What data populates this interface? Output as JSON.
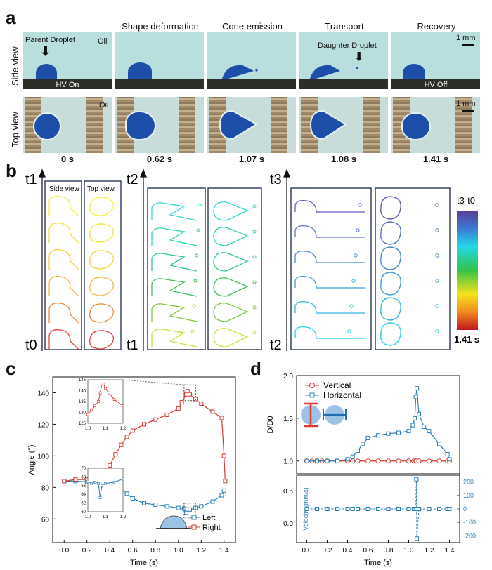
{
  "panel_labels": {
    "a": "a",
    "b": "b",
    "c": "c",
    "d": "d"
  },
  "panel_a": {
    "columns": [
      "",
      "Shape deformation",
      "Cone emission",
      "Transport",
      "Recovery"
    ],
    "row_labels": {
      "side": "Side view",
      "top": "Top view"
    },
    "parent_droplet": "Parent Droplet",
    "daughter_droplet": "Daughter Droplet",
    "oil": "Oil",
    "hv_on": "HV On",
    "hv_off": "HV Off",
    "scale_bar": "1 mm",
    "times": [
      "0 s",
      "0.62 s",
      "1.07 s",
      "1.08 s",
      "1.41 s"
    ]
  },
  "panel_b": {
    "t0": "t0",
    "t1": "t1",
    "t2": "t2",
    "t3": "t3",
    "side_view": "Side view",
    "top_view": "Top view",
    "colorbar_label": "t3-t0",
    "colorbar_max": "1.41 s"
  },
  "chart_data": [
    {
      "type": "line",
      "panel": "c",
      "xlabel": "Time (s)",
      "ylabel": "Angle (°)",
      "xlim": [
        -0.1,
        1.5
      ],
      "ylim": [
        45,
        150
      ],
      "xticks": [
        "0.0",
        "0.2",
        "0.4",
        "0.6",
        "0.8",
        "1.0",
        "1.2",
        "1.4"
      ],
      "yticks": [
        "60",
        "80",
        "100",
        "120",
        "140"
      ],
      "legend_position": "bottom-right",
      "series": [
        {
          "name": "Left",
          "color": "#2a7db5",
          "x": [
            0.0,
            0.1,
            0.2,
            0.3,
            0.4,
            0.45,
            0.5,
            0.55,
            0.6,
            0.7,
            0.8,
            0.9,
            1.0,
            1.05,
            1.07,
            1.08,
            1.1,
            1.15,
            1.2,
            1.3,
            1.38,
            1.4
          ],
          "y": [
            84,
            84,
            83.5,
            83,
            82,
            81,
            79,
            76,
            73,
            70,
            69,
            68,
            67,
            66.5,
            64,
            66,
            66,
            67,
            68,
            71,
            75,
            78
          ]
        },
        {
          "name": "Right",
          "color": "#d9392f",
          "x": [
            0.0,
            0.1,
            0.2,
            0.3,
            0.35,
            0.4,
            0.45,
            0.5,
            0.55,
            0.6,
            0.7,
            0.8,
            0.9,
            1.0,
            1.03,
            1.07,
            1.08,
            1.1,
            1.15,
            1.2,
            1.3,
            1.38,
            1.4,
            1.41
          ],
          "y": [
            84,
            85,
            85,
            86,
            88,
            94,
            101,
            107,
            112,
            116,
            120,
            123,
            126,
            130,
            134,
            139,
            141,
            139,
            136,
            133,
            128,
            124,
            100,
            84
          ]
        }
      ],
      "inset_upper": {
        "xlim": [
          1.0,
          1.2
        ],
        "ylim": [
          125,
          145
        ],
        "xticks": [
          "1.0",
          "1.1",
          "1.2"
        ],
        "yticks": [
          "125",
          "130",
          "135",
          "140",
          "145"
        ],
        "x": [
          1.0,
          1.02,
          1.04,
          1.06,
          1.07,
          1.08,
          1.09,
          1.1,
          1.12,
          1.15,
          1.2
        ],
        "y": [
          129,
          131,
          133,
          135,
          139,
          143,
          143,
          141,
          139,
          136,
          133
        ]
      },
      "inset_lower": {
        "xlim": [
          1.0,
          1.2
        ],
        "ylim": [
          60,
          70
        ],
        "xticks": [
          "1.0",
          "1.1",
          "1.2"
        ],
        "yticks": [
          "60",
          "62",
          "64",
          "66",
          "68",
          "70"
        ],
        "x": [
          1.0,
          1.02,
          1.04,
          1.06,
          1.07,
          1.08,
          1.1,
          1.15,
          1.2
        ],
        "y": [
          67,
          66.5,
          66.8,
          66.5,
          63.2,
          66,
          66.5,
          66.8,
          67.5
        ]
      }
    },
    {
      "type": "line",
      "panel": "d",
      "xlabel": "Time (s)",
      "ylabel": "D/D0",
      "ylabel2": "Velocity (mm/s)",
      "xlim": [
        -0.1,
        1.5
      ],
      "xticks": [
        "0.0",
        "0.2",
        "0.4",
        "0.6",
        "0.8",
        "1.0",
        "1.2",
        "1.4"
      ],
      "top": {
        "ylim": [
          0.85,
          2.0
        ],
        "yticks": [
          "1.0",
          "1.5",
          "2.0"
        ],
        "series": [
          {
            "name": "Vertical",
            "color": "#d9392f",
            "x": [
              0.0,
              0.05,
              0.1,
              0.15,
              0.2,
              0.3,
              0.4,
              0.45,
              0.5,
              0.6,
              0.7,
              0.8,
              0.9,
              1.0,
              1.05,
              1.07,
              1.08,
              1.1,
              1.2,
              1.3,
              1.38,
              1.4
            ],
            "y": [
              1.0,
              1.0,
              1.0,
              1.0,
              1.0,
              1.0,
              1.0,
              1.0,
              1.0,
              1.0,
              1.0,
              1.0,
              1.0,
              1.0,
              1.0,
              1.0,
              1.0,
              1.0,
              1.0,
              1.0,
              1.0,
              1.0
            ]
          },
          {
            "name": "Horizontal",
            "color": "#2a7db5",
            "x": [
              0.0,
              0.1,
              0.2,
              0.3,
              0.4,
              0.45,
              0.5,
              0.55,
              0.6,
              0.7,
              0.8,
              0.9,
              1.0,
              1.04,
              1.06,
              1.07,
              1.08,
              1.1,
              1.15,
              1.2,
              1.3,
              1.38,
              1.4
            ],
            "y": [
              1.0,
              1.0,
              1.0,
              1.0,
              1.02,
              1.05,
              1.12,
              1.2,
              1.27,
              1.3,
              1.32,
              1.33,
              1.35,
              1.42,
              1.5,
              1.75,
              1.85,
              1.55,
              1.4,
              1.35,
              1.2,
              1.08,
              1.02
            ]
          }
        ]
      },
      "bottom": {
        "ylim": [
          -250,
          250
        ],
        "yticks2": [
          "200",
          "100",
          "0",
          "-100",
          "-200"
        ],
        "yticks_left": [
          "0.5",
          "0.0"
        ],
        "series": [
          {
            "name": "Velocity",
            "color": "#2a7db5",
            "x": [
              0.0,
              0.1,
              0.2,
              0.3,
              0.4,
              0.45,
              0.5,
              0.6,
              0.7,
              0.8,
              0.9,
              1.0,
              1.05,
              1.07,
              1.075,
              1.08,
              1.1,
              1.2,
              1.3,
              1.38,
              1.4
            ],
            "y": [
              0,
              0,
              0,
              0,
              0,
              0,
              0,
              0,
              0,
              0,
              0,
              0,
              0,
              0,
              220,
              -220,
              0,
              0,
              0,
              0,
              0
            ]
          }
        ]
      }
    }
  ]
}
